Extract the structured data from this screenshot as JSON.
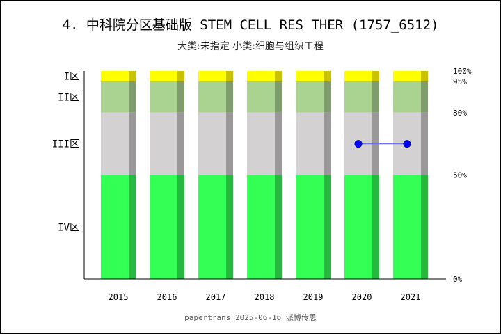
{
  "title": "4. 中科院分区基础版 STEM CELL RES THER (1757_6512)",
  "subtitle": "大类:未指定 小类:细胞与组织工程",
  "footer": "papertrans 2025-06-16 派博传思",
  "chart_data": {
    "type": "bar",
    "categories": [
      "2015",
      "2016",
      "2017",
      "2018",
      "2019",
      "2020",
      "2021"
    ],
    "zones": [
      {
        "label": "I区",
        "from": 95,
        "to": 100,
        "color": "#ffff00",
        "shade": "#c8c200"
      },
      {
        "label": "II区",
        "from": 80,
        "to": 95,
        "color": "#aad290",
        "shade": "#7f9c6c"
      },
      {
        "label": "III区",
        "from": 50,
        "to": 80,
        "color": "#d3d1d1",
        "shade": "#9a9898"
      },
      {
        "label": "IV区",
        "from": 0,
        "to": 50,
        "color": "#33ff55",
        "shade": "#26b83f"
      }
    ],
    "percent_ticks": [
      "100%",
      "95%",
      "80%",
      "50%",
      "0%"
    ],
    "percent_tick_values": [
      100,
      95,
      80,
      50,
      0
    ],
    "ylim": [
      0,
      100
    ],
    "series": [
      {
        "values": [
          null,
          null,
          null,
          null,
          null,
          65,
          65
        ],
        "color": "#0000ff"
      }
    ]
  }
}
